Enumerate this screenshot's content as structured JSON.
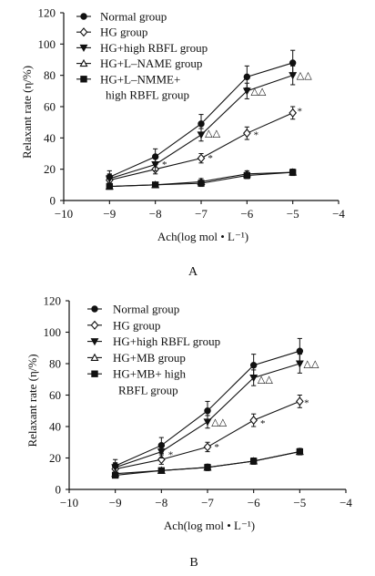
{
  "chart_data": [
    {
      "type": "line",
      "panel_label": "A",
      "xlabel": "Ach(log mol • L⁻¹)",
      "ylabel": "Relaxant rate (η/%)",
      "xlim": [
        -10,
        -4
      ],
      "ylim": [
        0,
        120
      ],
      "xticks": [
        -10,
        -9,
        -8,
        -7,
        -6,
        -5,
        -4
      ],
      "yticks": [
        0,
        20,
        40,
        60,
        80,
        100,
        120
      ],
      "legend_position": "top-left",
      "x": [
        -9,
        -8,
        -7,
        -6,
        -5
      ],
      "series": [
        {
          "name": "Normal group",
          "marker": "filled-circle",
          "values": [
            15,
            28,
            49,
            79,
            88
          ],
          "errors": [
            4,
            5,
            6,
            7,
            8
          ]
        },
        {
          "name": "HG group",
          "marker": "open-diamond",
          "values": [
            13,
            20,
            27,
            43,
            56
          ],
          "errors": [
            3,
            3,
            3,
            4,
            4
          ]
        },
        {
          "name": "HG+high RBFL group",
          "marker": "filled-triangle-down",
          "values": [
            14,
            23,
            42,
            70,
            80
          ],
          "errors": [
            3,
            4,
            4,
            5,
            6
          ]
        },
        {
          "name": "HG+L–NAME group",
          "marker": "open-triangle",
          "values": [
            9,
            10,
            12,
            17,
            18
          ],
          "errors": [
            1,
            1,
            2,
            2,
            2
          ]
        },
        {
          "name": [
            "HG+L–NMME+",
            "high RBFL group"
          ],
          "marker": "filled-square",
          "values": [
            9,
            10,
            11,
            16,
            18
          ],
          "errors": [
            1,
            1,
            2,
            2,
            2
          ]
        }
      ],
      "annotations": [
        {
          "text": "*",
          "x": -7.8,
          "y": 21
        },
        {
          "text": "*",
          "x": -6.8,
          "y": 25
        },
        {
          "text": "*",
          "x": -5.8,
          "y": 40
        },
        {
          "text": "*",
          "x": -4.85,
          "y": 55
        },
        {
          "text": "△△",
          "x": -6.75,
          "y": 41
        },
        {
          "text": "△△",
          "x": -5.75,
          "y": 68
        },
        {
          "text": "△△",
          "x": -4.75,
          "y": 78
        }
      ]
    },
    {
      "type": "line",
      "panel_label": "B",
      "xlabel": "Ach(log mol • L⁻¹)",
      "ylabel": "Relaxant rate (η/%)",
      "xlim": [
        -10,
        -4
      ],
      "ylim": [
        0,
        120
      ],
      "xticks": [
        -10,
        -9,
        -8,
        -7,
        -6,
        -5,
        -4
      ],
      "yticks": [
        0,
        20,
        40,
        60,
        80,
        100,
        120
      ],
      "legend_position": "top-left",
      "x": [
        -9,
        -8,
        -7,
        -6,
        -5
      ],
      "series": [
        {
          "name": "Normal group",
          "marker": "filled-circle",
          "values": [
            15,
            28,
            50,
            79,
            88
          ],
          "errors": [
            4,
            5,
            6,
            7,
            8
          ]
        },
        {
          "name": "HG group",
          "marker": "open-diamond",
          "values": [
            13,
            19,
            27,
            44,
            56
          ],
          "errors": [
            3,
            3,
            3,
            4,
            4
          ]
        },
        {
          "name": "HG+high RBFL group",
          "marker": "filled-triangle-down",
          "values": [
            14,
            24,
            43,
            71,
            80
          ],
          "errors": [
            3,
            4,
            4,
            5,
            6
          ]
        },
        {
          "name": "HG+MB group",
          "marker": "open-triangle",
          "values": [
            10,
            12,
            14,
            18,
            24
          ],
          "errors": [
            1,
            1,
            2,
            2,
            2
          ]
        },
        {
          "name": [
            "HG+MB+ high",
            "RBFL group"
          ],
          "marker": "filled-square",
          "values": [
            9,
            12,
            14,
            18,
            24
          ],
          "errors": [
            1,
            1,
            2,
            2,
            2
          ]
        }
      ],
      "annotations": [
        {
          "text": "*",
          "x": -7.8,
          "y": 20
        },
        {
          "text": "*",
          "x": -6.8,
          "y": 25
        },
        {
          "text": "*",
          "x": -5.8,
          "y": 40
        },
        {
          "text": "*",
          "x": -4.85,
          "y": 53
        },
        {
          "text": "△△",
          "x": -6.75,
          "y": 41
        },
        {
          "text": "△△",
          "x": -5.75,
          "y": 68
        },
        {
          "text": "△△",
          "x": -4.75,
          "y": 78
        }
      ]
    }
  ]
}
